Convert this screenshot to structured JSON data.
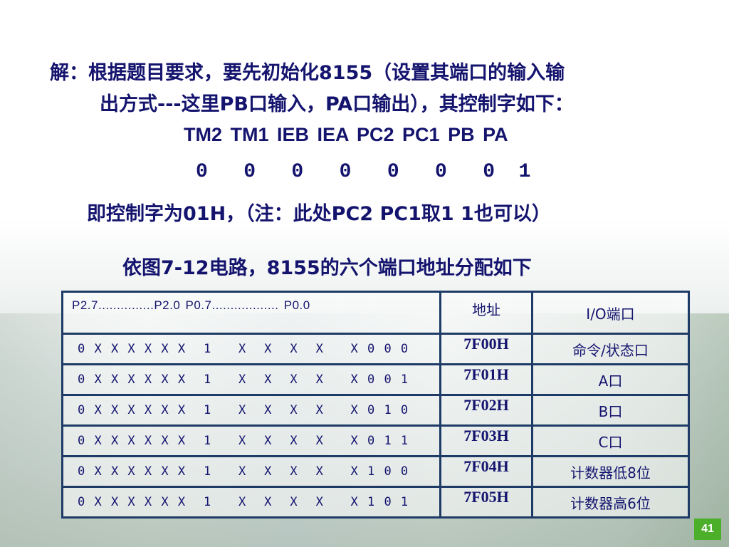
{
  "intro_line1": "解：根据题目要求，要先初始化8155（设置其端口的输入输",
  "intro_line2": "出方式---这里PB口输入，PA口输出），其控制字如下：",
  "control_bits_labels": "TM2 TM1 IEB IEA PC2 PC1 PB PA",
  "control_bits_values": "0   0   0   0   0   0   0  1",
  "control_word_note": "即控制字为01H，（注：此处PC2 PC1取1 1也可以）",
  "table_caption": "依图7-12电路，8155的六个端口地址分配如下",
  "table": {
    "headers": [
      "P2.7...............P2.0 P0.7.................. P0.0",
      "地址",
      "I/O端口"
    ],
    "rows": [
      {
        "bits": "0 X X X X X X  1   X  X  X  X   X 0 0 0",
        "address": "7F00H",
        "port": "命令/状态口"
      },
      {
        "bits": "0 X X X X X X  1   X  X  X  X   X 0 0 1",
        "address": "7F01H",
        "port": "A口"
      },
      {
        "bits": "0 X X X X X X  1   X  X  X  X   X 0 1 0",
        "address": "7F02H",
        "port": "B口"
      },
      {
        "bits": "0 X X X X X X  1   X  X  X  X   X 0 1 1",
        "address": "7F03H",
        "port": "C口"
      },
      {
        "bits": "0 X X X X X X  1   X  X  X  X   X 1 0 0",
        "address": "7F04H",
        "port": "计数器低8位"
      },
      {
        "bits": "0 X X X X X X  1   X  X  X  X   X 1 0 1",
        "address": "7F05H",
        "port": "计数器高6位"
      }
    ]
  },
  "page_number": "41",
  "colors": {
    "text": "#14146e",
    "table_border": "#1d3b66",
    "page_badge": "#4caf2a"
  }
}
